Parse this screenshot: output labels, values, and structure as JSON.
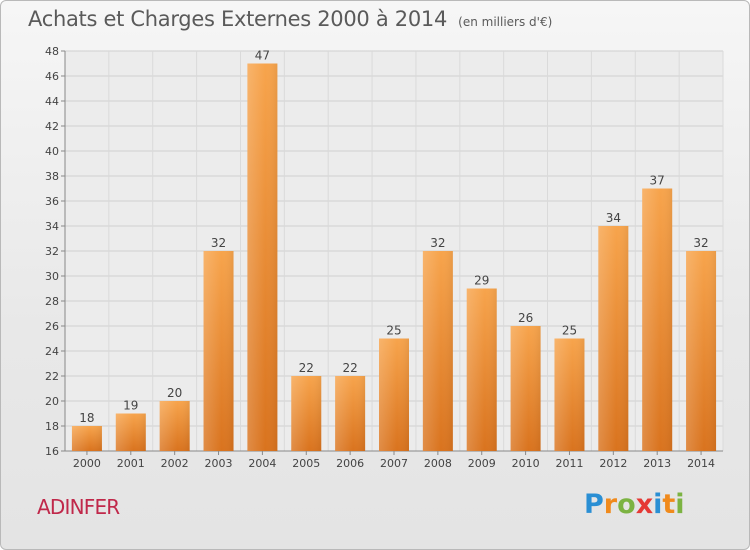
{
  "header": {
    "title": "Achats et Charges Externes 2000 à 2014",
    "unit": "(en milliers d'€)"
  },
  "footer": {
    "town": "ADINFER",
    "brand": "Proxiti",
    "brand_colors": [
      "#2a8fd4",
      "#f08a1c",
      "#7cb342",
      "#e53935",
      "#2a8fd4",
      "#f08a1c",
      "#7cb342"
    ]
  },
  "chart_data": {
    "type": "bar",
    "title": "Achats et Charges Externes 2000 à 2014",
    "subtitle": "(en milliers d'€)",
    "xlabel": "",
    "ylabel": "",
    "categories": [
      "2000",
      "2001",
      "2002",
      "2003",
      "2004",
      "2005",
      "2006",
      "2007",
      "2008",
      "2009",
      "2010",
      "2011",
      "2012",
      "2013",
      "2014"
    ],
    "values": [
      18,
      19,
      20,
      32,
      47,
      22,
      22,
      25,
      32,
      29,
      26,
      25,
      34,
      37,
      32
    ],
    "ylim": [
      16,
      48
    ],
    "yticks": [
      16,
      18,
      20,
      22,
      24,
      26,
      28,
      30,
      32,
      34,
      36,
      38,
      40,
      42,
      44,
      46,
      48
    ],
    "grid": true,
    "bar_color_top": "#f7a44c",
    "bar_color_bottom": "#d9731e"
  }
}
